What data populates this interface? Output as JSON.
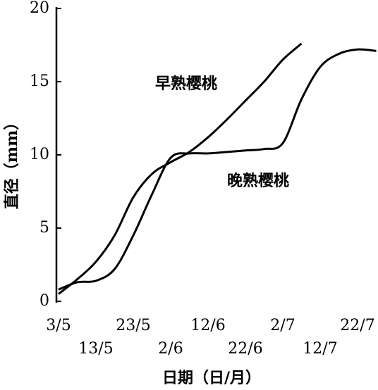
{
  "chart_data": {
    "type": "line",
    "x_label": "日期（日/月）",
    "y_label": "直径（mm）",
    "categories": [
      "3/5",
      null,
      "13/5",
      null,
      "23/5",
      null,
      "2/6",
      null,
      "12/6",
      null,
      "22/6",
      null,
      "2/7",
      null,
      "12/7",
      null,
      "22/7",
      null
    ],
    "series": [
      {
        "name": "早熟樱桃",
        "color": "#000000",
        "values": [
          0.5,
          1.5,
          2.7,
          4.5,
          7.1,
          8.7,
          9.5,
          10.2,
          11.2,
          12.4,
          13.7,
          15.0,
          16.5,
          17.6,
          null,
          null,
          null,
          null
        ]
      },
      {
        "name": "晚熟樱桃",
        "color": "#000000",
        "values": [
          0.8,
          1.3,
          1.4,
          2.2,
          4.5,
          7.3,
          9.8,
          10.1,
          10.1,
          10.2,
          10.3,
          10.4,
          10.8,
          13.8,
          16.0,
          16.9,
          17.2,
          17.1
        ]
      }
    ],
    "ylim": [
      0,
      20
    ],
    "yticks": [
      0,
      5,
      10,
      15,
      20
    ]
  }
}
